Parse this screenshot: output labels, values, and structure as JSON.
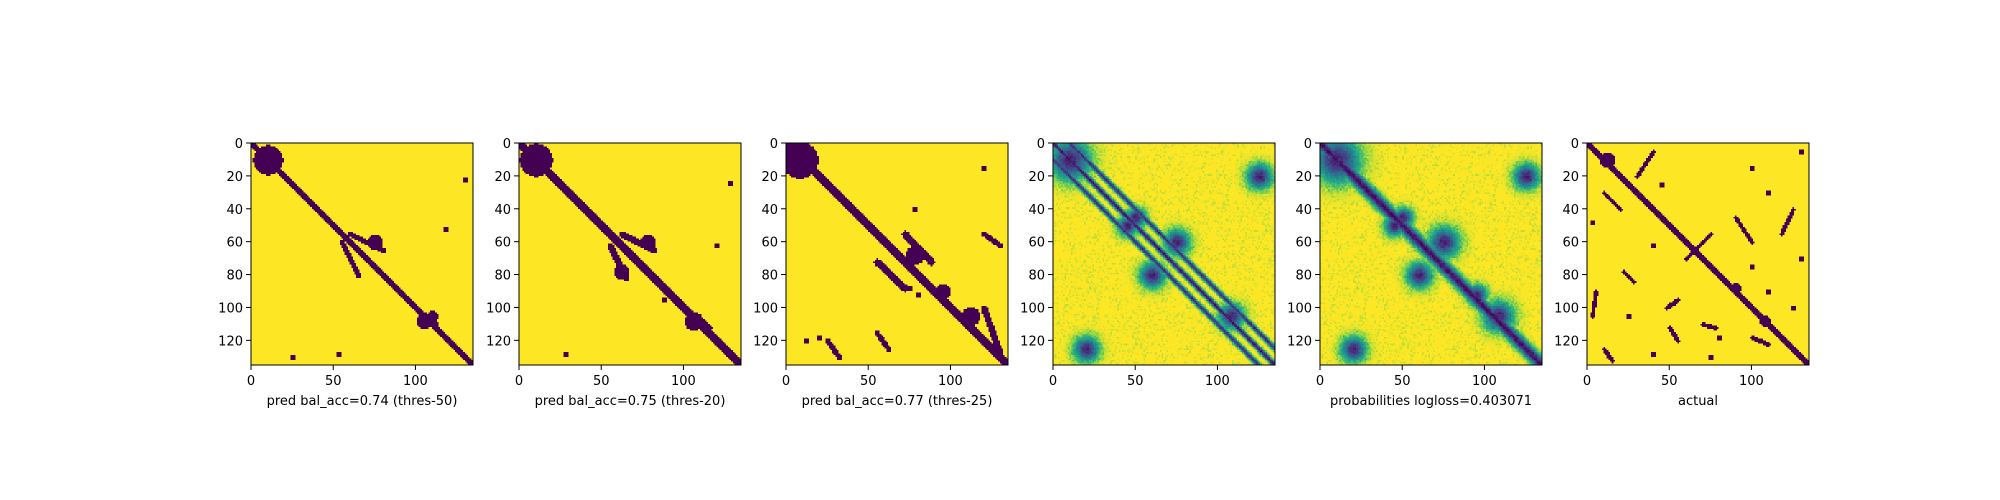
{
  "chart_data": [
    {
      "type": "heatmap",
      "colormap": "viridis",
      "title": "",
      "xlabel": "pred bal_acc=0.74 (thres-50)",
      "ylabel": "",
      "xlim": [
        0,
        135
      ],
      "ylim": [
        135,
        0
      ],
      "x_ticks": [
        0,
        50,
        100
      ],
      "y_ticks": [
        0,
        20,
        40,
        60,
        80,
        100,
        120
      ],
      "matrix_size": 135,
      "description_values": "binary contact map: 0 (purple) = contact, 1 (yellow) = no contact",
      "features": {
        "diagonal_width": 2.5,
        "blobs": [
          [
            10,
            10,
            8
          ],
          [
            60,
            75,
            4
          ],
          [
            108,
            105,
            4
          ],
          [
            105,
            110,
            3
          ]
        ],
        "offdiag_bands": [
          [
            55,
            60,
            65,
            80,
            1.5
          ],
          [
            60,
            55,
            80,
            65,
            1.5
          ],
          [
            100,
            100,
            110,
            112,
            1.5
          ]
        ],
        "specks": [
          [
            22,
            130
          ],
          [
            128,
            53
          ],
          [
            52,
            118
          ],
          [
            130,
            25
          ]
        ]
      }
    },
    {
      "type": "heatmap",
      "colormap": "viridis",
      "title": "",
      "xlabel": "pred bal_acc=0.75 (thres-20)",
      "ylabel": "",
      "xlim": [
        0,
        135
      ],
      "ylim": [
        135,
        0
      ],
      "x_ticks": [
        0,
        50,
        100
      ],
      "y_ticks": [
        0,
        20,
        40,
        60,
        80,
        100,
        120
      ],
      "matrix_size": 135,
      "features": {
        "diagonal_width": 2.8,
        "blobs": [
          [
            10,
            10,
            9
          ],
          [
            60,
            78,
            4
          ],
          [
            78,
            62,
            4
          ],
          [
            108,
            106,
            5
          ]
        ],
        "offdiag_bands": [
          [
            55,
            62,
            65,
            82,
            1.8
          ],
          [
            62,
            55,
            82,
            65,
            1.8
          ],
          [
            100,
            100,
            112,
            115,
            2
          ]
        ],
        "specks": [
          [
            24,
            128
          ],
          [
            128,
            28
          ],
          [
            62,
            120
          ],
          [
            95,
            88
          ]
        ]
      }
    },
    {
      "type": "heatmap",
      "colormap": "viridis",
      "title": "",
      "xlabel": "pred bal_acc=0.77 (thres-25)",
      "ylabel": "",
      "xlim": [
        0,
        135
      ],
      "ylim": [
        135,
        0
      ],
      "x_ticks": [
        0,
        50,
        100
      ],
      "y_ticks": [
        0,
        20,
        40,
        60,
        80,
        100,
        120
      ],
      "matrix_size": 135,
      "features": {
        "diagonal_width": 3,
        "blobs": [
          [
            10,
            8,
            10
          ],
          [
            68,
            78,
            5
          ],
          [
            90,
            95,
            4
          ],
          [
            105,
            112,
            5
          ]
        ],
        "offdiag_bands": [
          [
            55,
            72,
            72,
            88,
            2
          ],
          [
            72,
            55,
            88,
            72,
            2
          ],
          [
            100,
            120,
            128,
            130,
            1.8
          ],
          [
            55,
            120,
            62,
            130,
            1.5
          ],
          [
            120,
            25,
            130,
            32,
            1.5
          ],
          [
            115,
            55,
            125,
            62,
            1.5
          ]
        ],
        "specks": [
          [
            15,
            120
          ],
          [
            40,
            78
          ],
          [
            88,
            75
          ],
          [
            92,
            80
          ],
          [
            118,
            20
          ],
          [
            120,
            12
          ]
        ]
      }
    },
    {
      "type": "heatmap",
      "colormap": "viridis",
      "title": "",
      "xlabel": "",
      "ylabel": "",
      "xlim": [
        0,
        135
      ],
      "ylim": [
        135,
        0
      ],
      "x_ticks": [
        0,
        50,
        100
      ],
      "y_ticks": [
        0,
        20,
        40,
        60,
        80,
        100,
        120
      ],
      "matrix_size": 135,
      "continuous": true,
      "features": {
        "diagonal_width": 1.5,
        "blobs": [
          [
            10,
            10,
            8
          ],
          [
            60,
            75,
            5
          ],
          [
            80,
            60,
            5
          ],
          [
            105,
            108,
            5
          ],
          [
            125,
            20,
            5
          ],
          [
            20,
            125,
            5
          ],
          [
            45,
            50,
            4
          ],
          [
            50,
            45,
            4
          ]
        ],
        "offdiag_bands": [
          [
            0,
            10,
            125,
            135,
            1
          ],
          [
            10,
            0,
            135,
            125,
            1
          ]
        ]
      }
    },
    {
      "type": "heatmap",
      "colormap": "viridis",
      "title": "",
      "xlabel": "probabilities logloss=0.403071",
      "ylabel": "",
      "xlim": [
        0,
        135
      ],
      "ylim": [
        135,
        0
      ],
      "x_ticks": [
        0,
        50,
        100
      ],
      "y_ticks": [
        0,
        20,
        40,
        60,
        80,
        100,
        120
      ],
      "matrix_size": 135,
      "continuous": true,
      "features": {
        "diagonal_width": 3.5,
        "blobs": [
          [
            10,
            10,
            9
          ],
          [
            60,
            75,
            6
          ],
          [
            80,
            60,
            5
          ],
          [
            105,
            108,
            6
          ],
          [
            125,
            20,
            5
          ],
          [
            20,
            125,
            5
          ],
          [
            45,
            50,
            4
          ],
          [
            50,
            45,
            4
          ],
          [
            92,
            95,
            4
          ]
        ],
        "offdiag_bands": []
      }
    },
    {
      "type": "heatmap",
      "colormap": "viridis",
      "title": "",
      "xlabel": "actual",
      "ylabel": "",
      "xlim": [
        0,
        135
      ],
      "ylim": [
        135,
        0
      ],
      "x_ticks": [
        0,
        50,
        100
      ],
      "y_ticks": [
        0,
        20,
        40,
        60,
        80,
        100,
        120
      ],
      "matrix_size": 135,
      "features": {
        "diagonal_width": 1.8,
        "blobs": [
          [
            10,
            12,
            4
          ],
          [
            88,
            90,
            3
          ],
          [
            108,
            108,
            3
          ]
        ],
        "offdiag_bands": [
          [
            5,
            40,
            20,
            30,
            1.2
          ],
          [
            45,
            90,
            60,
            100,
            1.2
          ],
          [
            55,
            75,
            70,
            60,
            1.2
          ],
          [
            95,
            55,
            100,
            48,
            1.2
          ],
          [
            110,
            70,
            112,
            78,
            1.2
          ],
          [
            118,
            100,
            122,
            110,
            1.2
          ],
          [
            30,
            10,
            40,
            20,
            1.2
          ],
          [
            90,
            5,
            105,
            3,
            1.2
          ],
          [
            125,
            10,
            132,
            15,
            1.2
          ],
          [
            40,
            125,
            55,
            118,
            1.2
          ],
          [
            78,
            22,
            84,
            28,
            1.2
          ],
          [
            112,
            50,
            120,
            55,
            1.2
          ]
        ],
        "specks": [
          [
            5,
            130
          ],
          [
            15,
            100
          ],
          [
            30,
            110
          ],
          [
            48,
            3
          ],
          [
            62,
            40
          ],
          [
            75,
            100
          ],
          [
            105,
            25
          ],
          [
            118,
            80
          ],
          [
            128,
            40
          ],
          [
            130,
            75
          ],
          [
            90,
            110
          ],
          [
            100,
            125
          ],
          [
            70,
            130
          ],
          [
            25,
            45
          ]
        ]
      }
    }
  ]
}
